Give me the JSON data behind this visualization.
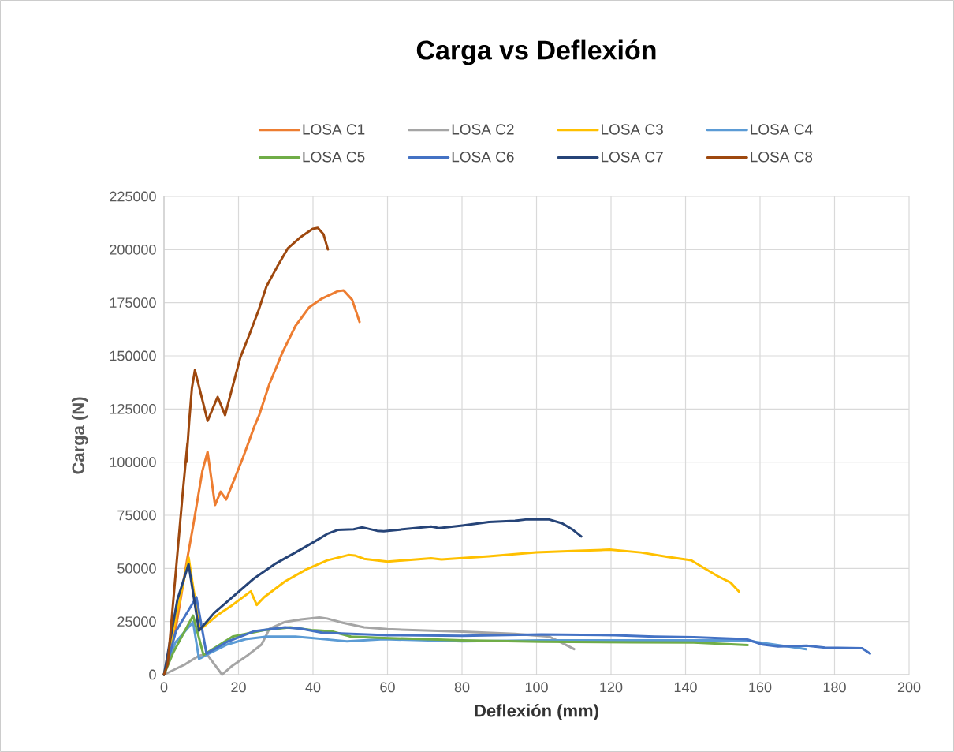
{
  "chart_data": {
    "type": "line",
    "title": "Carga vs Deflexión",
    "xlabel": "Deflexión (mm)",
    "ylabel": "Carga (N)",
    "xlim": [
      0,
      200
    ],
    "xticks": [
      0,
      20,
      40,
      60,
      80,
      100,
      120,
      140,
      160,
      180,
      200
    ],
    "ylim": [
      0,
      225000
    ],
    "yticks": [
      0,
      25000,
      50000,
      75000,
      100000,
      125000,
      150000,
      175000,
      200000,
      225000
    ],
    "grid": true,
    "legend": "top",
    "marker": "none",
    "line_style": "solid",
    "series": [
      {
        "name": "LOSA C1",
        "color": "#ed7d31",
        "x": [
          0,
          3,
          6.3,
          7.8,
          10.3,
          11.7,
          13.7,
          15.2,
          16.7,
          18.4,
          21.2,
          24.3,
          25.5,
          28.3,
          31.8,
          35.3,
          38.9,
          42.4,
          46.6,
          48.2,
          50.5,
          52.5
        ],
        "values": [
          0,
          20000,
          55000,
          69800,
          95800,
          104800,
          79800,
          86100,
          82400,
          89800,
          102100,
          117000,
          121900,
          136800,
          151600,
          164100,
          172700,
          177000,
          180400,
          180800,
          176400,
          166000
        ]
      },
      {
        "name": "LOSA C2",
        "color": "#a5a5a5",
        "x": [
          0,
          2.9,
          5.7,
          9.2,
          11.4,
          15.6,
          18.4,
          22.6,
          26.2,
          28.3,
          32.5,
          36.8,
          41.7,
          43.8,
          48,
          53.7,
          60,
          80.1,
          94.2,
          103.4,
          106.9,
          110.1
        ],
        "values": [
          0,
          2500,
          4900,
          8700,
          9900,
          0,
          4300,
          9300,
          14200,
          21600,
          24800,
          26000,
          26900,
          26400,
          24400,
          22300,
          21400,
          20200,
          19200,
          17900,
          14900,
          12000
        ]
      },
      {
        "name": "LOSA C3",
        "color": "#ffc000",
        "x": [
          0,
          3,
          6.6,
          9.6,
          14.2,
          18.4,
          23.3,
          24.9,
          26.9,
          32.5,
          38.2,
          43.8,
          49.5,
          51.2,
          53.7,
          60,
          71.7,
          74.5,
          87.2,
          99.9,
          111.1,
          119.6,
          128,
          135.2,
          141.5,
          145,
          148.6,
          152.1,
          154.4
        ],
        "values": [
          0,
          25000,
          55100,
          21000,
          27800,
          32800,
          39200,
          32800,
          36500,
          43900,
          49500,
          53800,
          56300,
          56100,
          54500,
          53200,
          54800,
          54200,
          55700,
          57500,
          58300,
          58800,
          57500,
          55400,
          53800,
          50100,
          46400,
          43300,
          39000
        ]
      },
      {
        "name": "LOSA C4",
        "color": "#5b9bd5",
        "x": [
          0,
          3,
          7.8,
          9.4,
          11.4,
          17,
          21.9,
          27.6,
          35.3,
          39.6,
          46.6,
          49.1,
          59,
          80.1,
          101.3,
          125.3,
          156.3,
          172.4
        ],
        "values": [
          0,
          15000,
          24800,
          7400,
          9300,
          14200,
          16700,
          17900,
          17900,
          17300,
          16100,
          15700,
          16700,
          15700,
          16100,
          16100,
          16100,
          12000
        ]
      },
      {
        "name": "LOSA C5",
        "color": "#70ad47",
        "x": [
          0,
          2.5,
          7.8,
          10.6,
          18.4,
          26.9,
          33.9,
          39.6,
          44.9,
          50.2,
          59,
          80.1,
          101.3,
          125.3,
          142.2,
          156.7
        ],
        "values": [
          0,
          10500,
          27800,
          9300,
          17900,
          21000,
          22300,
          21000,
          20400,
          17900,
          17300,
          16100,
          15500,
          15200,
          15100,
          13900
        ]
      },
      {
        "name": "LOSA C6",
        "color": "#4472c4",
        "x": [
          0,
          3.2,
          8.7,
          11.4,
          17,
          24.1,
          32.5,
          36.8,
          42.4,
          50.2,
          60,
          80.1,
          101.3,
          121,
          131.6,
          142.2,
          156.3,
          160.6,
          164.8,
          172.5,
          177.5,
          187.4,
          189.5
        ],
        "values": [
          0,
          20400,
          36500,
          9900,
          15500,
          20400,
          22300,
          21600,
          19800,
          19200,
          18600,
          18300,
          18900,
          18600,
          17900,
          17600,
          16700,
          14200,
          13300,
          13600,
          12700,
          12400,
          9900
        ]
      },
      {
        "name": "LOSA C7",
        "color": "#264478",
        "x": [
          0,
          3.6,
          6.6,
          9.4,
          13.5,
          18.4,
          24.1,
          29.7,
          35.3,
          40.3,
          43.8,
          46.6,
          50.9,
          53.3,
          57.2,
          59,
          71.7,
          73.8,
          80.1,
          87.2,
          94.2,
          97.1,
          103.4,
          106.9,
          109.8,
          112
        ],
        "values": [
          0,
          35300,
          52000,
          20700,
          29100,
          36500,
          45200,
          52000,
          57500,
          62500,
          66200,
          68100,
          68400,
          69300,
          67700,
          67500,
          69700,
          69000,
          70200,
          71800,
          72400,
          73000,
          73000,
          71200,
          68100,
          65000
        ]
      },
      {
        "name": "LOSA C8",
        "color": "#9e480e",
        "x": [
          0,
          1,
          3,
          5,
          6.3,
          6,
          6.8,
          7.5,
          8.3,
          11.7,
          14.4,
          16.4,
          18.4,
          20.5,
          23,
          25.4,
          27.5,
          30.4,
          33.2,
          36.8,
          39.9,
          41.3,
          42.8,
          44
        ],
        "values": [
          0,
          5000,
          45000,
          85000,
          109000,
          100000,
          120000,
          135000,
          143300,
          119400,
          130700,
          122100,
          135500,
          149300,
          160400,
          171500,
          182700,
          192000,
          200500,
          206100,
          209800,
          210200,
          207300,
          200100
        ]
      }
    ]
  }
}
